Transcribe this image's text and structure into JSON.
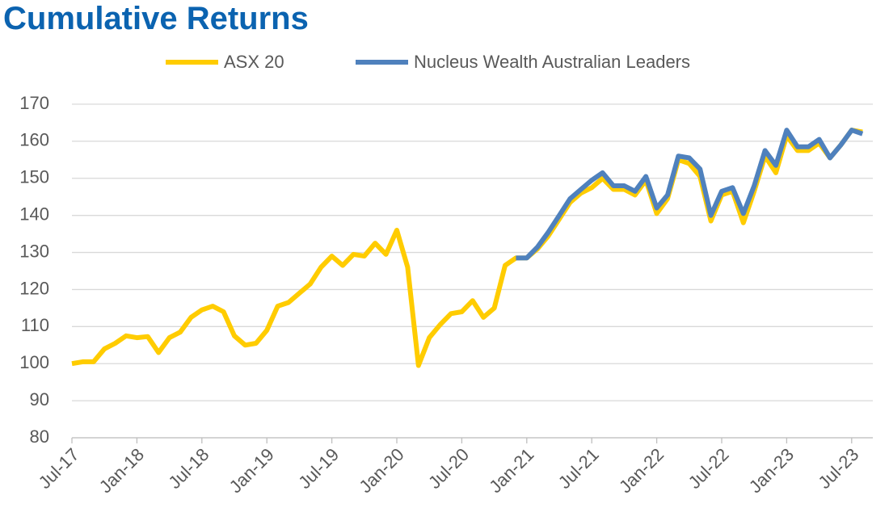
{
  "chart_data": {
    "type": "line",
    "title": "Cumulative Returns",
    "categories": [
      "Jul-17",
      null,
      null,
      null,
      null,
      null,
      "Jan-18",
      null,
      null,
      null,
      null,
      null,
      "Jul-18",
      null,
      null,
      null,
      null,
      null,
      "Jan-19",
      null,
      null,
      null,
      null,
      null,
      "Jul-19",
      null,
      null,
      null,
      null,
      null,
      "Jan-20",
      null,
      null,
      null,
      null,
      null,
      "Jul-20",
      null,
      null,
      null,
      null,
      null,
      "Jan-21",
      null,
      null,
      null,
      null,
      null,
      "Jul-21",
      null,
      null,
      null,
      null,
      null,
      "Jan-22",
      null,
      null,
      null,
      null,
      null,
      "Jul-22",
      null,
      null,
      null,
      null,
      null,
      "Jan-23",
      null,
      null,
      null,
      null,
      null,
      "Jul-23",
      null
    ],
    "series": [
      {
        "name": "ASX 20",
        "color": "#ffcc00",
        "values": [
          100,
          100.5,
          100.5,
          104,
          105.5,
          107.5,
          107,
          107.3,
          103,
          107,
          108.5,
          112.5,
          114.5,
          115.5,
          114,
          107.5,
          105,
          105.5,
          109,
          115.5,
          116.5,
          119,
          121.5,
          126,
          129,
          126.5,
          129.5,
          129,
          132.5,
          129.5,
          136,
          126,
          99.5,
          107,
          110.5,
          113.5,
          114,
          117,
          112.5,
          115,
          126.5,
          128.5,
          128.5,
          131,
          134.5,
          139,
          143.5,
          146,
          147.5,
          150,
          147,
          147,
          145.5,
          149.5,
          140.5,
          144.5,
          155,
          154,
          150.5,
          138.5,
          145.5,
          146.5,
          138,
          146.5,
          156,
          151.5,
          161.5,
          157.5,
          157.5,
          159.5,
          155.5,
          159,
          163,
          162.5
        ]
      },
      {
        "name": "Nucleus Wealth Australian Leaders",
        "color": "#4f81bd",
        "values": [
          null,
          null,
          null,
          null,
          null,
          null,
          null,
          null,
          null,
          null,
          null,
          null,
          null,
          null,
          null,
          null,
          null,
          null,
          null,
          null,
          null,
          null,
          null,
          null,
          null,
          null,
          null,
          null,
          null,
          null,
          null,
          null,
          null,
          null,
          null,
          null,
          null,
          null,
          null,
          null,
          null,
          128.5,
          128.5,
          131.5,
          135.5,
          140,
          144.5,
          147,
          149.5,
          151.5,
          148,
          148,
          146.5,
          150.5,
          142,
          145.5,
          156,
          155.5,
          152.5,
          140,
          146.5,
          147.5,
          140.5,
          148,
          157.5,
          153.5,
          163,
          158.5,
          158.5,
          160.5,
          155.5,
          159,
          163,
          162
        ]
      }
    ],
    "ylim": [
      80,
      170
    ],
    "yticks": [
      80,
      90,
      100,
      110,
      120,
      130,
      140,
      150,
      160,
      170
    ],
    "grid": true,
    "legend": "top"
  }
}
